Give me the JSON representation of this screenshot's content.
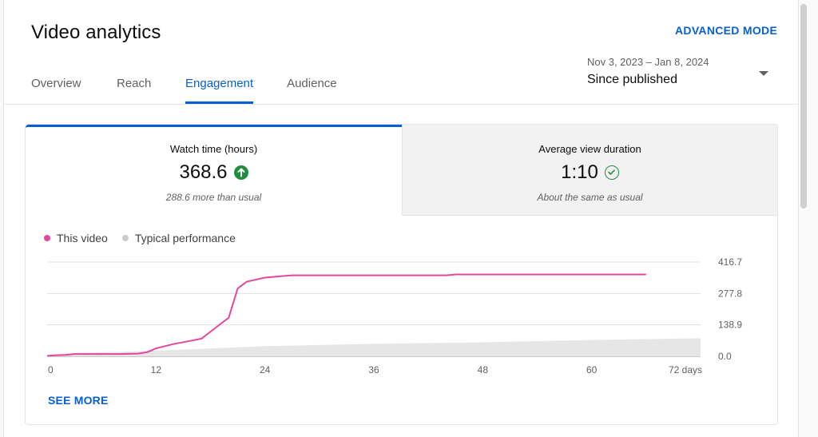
{
  "header": {
    "title": "Video analytics",
    "advanced_mode": "ADVANCED MODE"
  },
  "tabs": [
    {
      "label": "Overview"
    },
    {
      "label": "Reach"
    },
    {
      "label": "Engagement",
      "active": true
    },
    {
      "label": "Audience"
    }
  ],
  "date_selector": {
    "range": "Nov 3, 2023 – Jan 8, 2024",
    "label": "Since published"
  },
  "metrics": [
    {
      "name": "Watch time (hours)",
      "value": "368.6",
      "note": "288.6 more than usual",
      "status_icon": "arrow-up-circle-icon"
    },
    {
      "name": "Average view duration",
      "value": "1:10",
      "note": "About the same as usual",
      "status_icon": "check-circle-icon"
    }
  ],
  "legend": {
    "this_video": "This video",
    "typical": "Typical performance"
  },
  "colors": {
    "accent": "#065fd4",
    "this_video": "#e2479b",
    "typical": "#cccccc",
    "positive": "#1e8e3e"
  },
  "see_more": "SEE MORE",
  "chart_data": {
    "type": "line",
    "x_ticks": [
      "0",
      "12",
      "24",
      "36",
      "48",
      "60",
      "72 days"
    ],
    "y_ticks": [
      "0.0",
      "138.9",
      "277.8",
      "416.7"
    ],
    "ylim": [
      0,
      416.7
    ],
    "xlim": [
      0,
      72
    ],
    "series": [
      {
        "name": "This video",
        "color": "#e2479b",
        "x": [
          0,
          1,
          2,
          3,
          4,
          6,
          8,
          10,
          11,
          12,
          14,
          16,
          17,
          19,
          20,
          21,
          22,
          24,
          26,
          27,
          30,
          40,
          44,
          45,
          50,
          60,
          66
        ],
        "y": [
          2,
          5,
          6,
          10,
          10,
          10,
          10,
          12,
          18,
          35,
          55,
          70,
          78,
          140,
          170,
          300,
          330,
          348,
          355,
          358,
          358,
          358,
          358,
          362,
          362,
          362,
          362
        ]
      },
      {
        "name": "Typical performance",
        "color": "#cccccc",
        "type": "area",
        "x": [
          0,
          3,
          8,
          12,
          18,
          24,
          36,
          48,
          60,
          72
        ],
        "y": [
          5,
          15,
          20,
          25,
          35,
          45,
          55,
          62,
          72,
          80
        ]
      }
    ]
  }
}
